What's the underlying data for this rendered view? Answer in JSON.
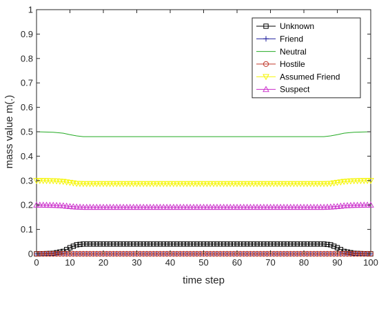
{
  "chart_data": {
    "type": "line",
    "title": "",
    "xlabel": "time step",
    "ylabel": "mass value m(.)",
    "xlim": [
      0,
      100
    ],
    "ylim": [
      0,
      1
    ],
    "x_ticks": [
      0,
      10,
      20,
      30,
      40,
      50,
      60,
      70,
      80,
      90,
      100
    ],
    "y_ticks": [
      0,
      0.1,
      0.2,
      0.3,
      0.4,
      0.5,
      0.6,
      0.7,
      0.8,
      0.9,
      1
    ],
    "y_tick_labels": [
      "0",
      "0.1",
      "0.2",
      "0.3",
      "0.4",
      "0.5",
      "0.6",
      "0.7",
      "0.8",
      "0.9",
      "1"
    ],
    "grid": false,
    "legend_position": "top-right",
    "series": [
      {
        "name": "Unknown",
        "color": "#000000",
        "marker": "square",
        "points": [
          [
            0,
            0
          ],
          [
            5,
            0.002
          ],
          [
            8,
            0.01
          ],
          [
            10,
            0.025
          ],
          [
            12,
            0.037
          ],
          [
            14,
            0.04
          ],
          [
            86,
            0.04
          ],
          [
            88,
            0.037
          ],
          [
            90,
            0.025
          ],
          [
            92,
            0.01
          ],
          [
            95,
            0.002
          ],
          [
            100,
            0
          ]
        ]
      },
      {
        "name": "Friend",
        "color": "#1f1f9e",
        "marker": "plus",
        "points": [
          [
            0,
            0
          ],
          [
            100,
            0
          ]
        ]
      },
      {
        "name": "Neutral",
        "color": "#22aa22",
        "marker": "none",
        "points": [
          [
            0,
            0.5
          ],
          [
            5,
            0.498
          ],
          [
            8,
            0.494
          ],
          [
            10,
            0.488
          ],
          [
            12,
            0.483
          ],
          [
            14,
            0.48
          ],
          [
            86,
            0.48
          ],
          [
            88,
            0.483
          ],
          [
            90,
            0.488
          ],
          [
            92,
            0.494
          ],
          [
            95,
            0.498
          ],
          [
            100,
            0.5
          ]
        ]
      },
      {
        "name": "Hostile",
        "color": "#c0392b",
        "marker": "circle",
        "points": [
          [
            0,
            0
          ],
          [
            100,
            0
          ]
        ]
      },
      {
        "name": "Assumed Friend",
        "color": "#f5f500",
        "marker": "triangle-down",
        "points": [
          [
            0,
            0.3
          ],
          [
            5,
            0.299
          ],
          [
            8,
            0.296
          ],
          [
            10,
            0.292
          ],
          [
            12,
            0.288
          ],
          [
            14,
            0.287
          ],
          [
            86,
            0.287
          ],
          [
            88,
            0.288
          ],
          [
            90,
            0.292
          ],
          [
            92,
            0.296
          ],
          [
            95,
            0.299
          ],
          [
            100,
            0.3
          ]
        ]
      },
      {
        "name": "Suspect",
        "color": "#cc33cc",
        "marker": "triangle-up",
        "points": [
          [
            0,
            0.2
          ],
          [
            5,
            0.199
          ],
          [
            8,
            0.197
          ],
          [
            10,
            0.194
          ],
          [
            12,
            0.192
          ],
          [
            14,
            0.191
          ],
          [
            86,
            0.191
          ],
          [
            88,
            0.192
          ],
          [
            90,
            0.194
          ],
          [
            92,
            0.197
          ],
          [
            95,
            0.199
          ],
          [
            100,
            0.2
          ]
        ]
      }
    ]
  }
}
